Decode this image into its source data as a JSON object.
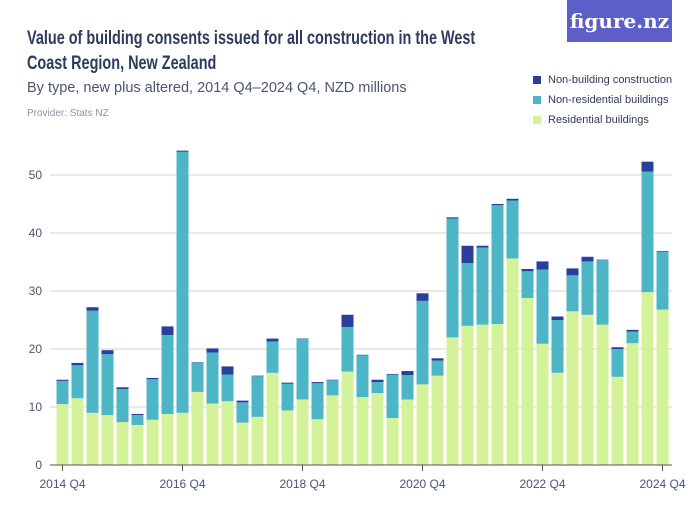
{
  "logo": "figure.nz",
  "chart_data": {
    "type": "bar",
    "stacked": true,
    "title": "Value of building consents issued for all construction in the West Coast Region, New Zealand",
    "subtitle": "By type, new plus altered, 2014 Q4–2024 Q4, NZD millions",
    "provider": "Provider: Stats NZ",
    "ylim": [
      0,
      55
    ],
    "yticks": [
      "0",
      "10",
      "20",
      "30",
      "40",
      "50"
    ],
    "xtick_labels": [
      "2014 Q4",
      "2016 Q4",
      "2018 Q4",
      "2020 Q4",
      "2022 Q4",
      "2024 Q4"
    ],
    "grid": true,
    "legend_position": "top-right",
    "categories": [
      "2014 Q4",
      "2015 Q1",
      "2015 Q2",
      "2015 Q3",
      "2015 Q4",
      "2016 Q1",
      "2016 Q2",
      "2016 Q3",
      "2016 Q4",
      "2017 Q1",
      "2017 Q2",
      "2017 Q3",
      "2017 Q4",
      "2018 Q1",
      "2018 Q2",
      "2018 Q3",
      "2018 Q4",
      "2019 Q1",
      "2019 Q2",
      "2019 Q3",
      "2019 Q4",
      "2020 Q1",
      "2020 Q2",
      "2020 Q3",
      "2020 Q4",
      "2021 Q1",
      "2021 Q2",
      "2021 Q3",
      "2021 Q4",
      "2022 Q1",
      "2022 Q2",
      "2022 Q3",
      "2022 Q4",
      "2023 Q1",
      "2023 Q2",
      "2023 Q3",
      "2023 Q4",
      "2024 Q1",
      "2024 Q2",
      "2024 Q3",
      "2024 Q4"
    ],
    "series": [
      {
        "name": "Residential buildings",
        "color": "#d4f29a",
        "values": [
          10.5,
          11.5,
          9.0,
          8.6,
          7.4,
          6.9,
          7.8,
          8.8,
          9.0,
          12.6,
          10.6,
          11.0,
          7.3,
          8.3,
          15.9,
          9.4,
          11.3,
          7.9,
          12.0,
          16.1,
          11.7,
          12.4,
          8.1,
          11.3,
          13.9,
          15.4,
          22.0,
          24.0,
          24.2,
          24.3,
          35.6,
          28.8,
          20.9,
          15.9,
          26.5,
          25.9,
          24.2,
          15.2,
          21.0,
          29.8,
          26.8
        ]
      },
      {
        "name": "Non-residential buildings",
        "color": "#4db6c6",
        "values": [
          4.0,
          5.7,
          17.6,
          10.5,
          5.7,
          1.7,
          7.0,
          13.6,
          45.0,
          5.0,
          8.8,
          4.6,
          3.5,
          7.0,
          5.4,
          4.6,
          10.4,
          6.2,
          2.6,
          7.7,
          7.2,
          1.9,
          7.5,
          4.2,
          14.4,
          2.6,
          20.5,
          10.8,
          13.3,
          20.5,
          10.0,
          4.6,
          12.8,
          9.1,
          6.2,
          9.2,
          11.1,
          4.8,
          2.0,
          20.8,
          10.0
        ]
      },
      {
        "name": "Non-building construction",
        "color": "#2a3f9c",
        "values": [
          0.2,
          0.4,
          0.6,
          0.7,
          0.3,
          0.2,
          0.2,
          1.5,
          0.2,
          0.1,
          0.7,
          1.4,
          0.3,
          0.1,
          0.5,
          0.2,
          0.1,
          0.2,
          0.1,
          2.1,
          0.1,
          0.4,
          0.1,
          0.7,
          1.3,
          0.4,
          0.2,
          3.0,
          0.3,
          0.2,
          0.3,
          0.4,
          1.4,
          0.6,
          1.2,
          0.8,
          0.1,
          0.3,
          0.3,
          1.7,
          0.1
        ]
      }
    ]
  }
}
